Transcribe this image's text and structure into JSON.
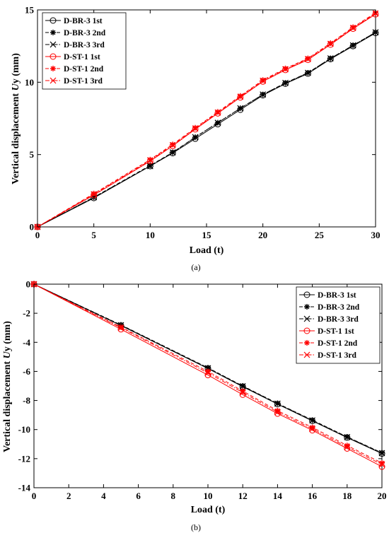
{
  "chart_data": [
    {
      "type": "line",
      "caption": "(a)",
      "xlabel": "Load  (t)",
      "ylabel_prefix": "Vertical displacement ",
      "ylabel_symbol": "U",
      "ylabel_suffix": "y (mm)",
      "xlim": [
        0,
        30
      ],
      "ylim": [
        0,
        15
      ],
      "xticks": [
        "0",
        "5",
        "10",
        "15",
        "20",
        "25",
        "30"
      ],
      "yticks": [
        "0",
        "5",
        "10",
        "15"
      ],
      "grid": false,
      "legend_position": "top-left",
      "series": [
        {
          "name": "D-BR-3 1st",
          "color": "#000000",
          "marker": "circle",
          "dash": "solid",
          "x": [
            0,
            5,
            10,
            12,
            14,
            16,
            18,
            20,
            22,
            24,
            26,
            28,
            30
          ],
          "y": [
            0,
            2.0,
            4.2,
            5.1,
            6.1,
            7.1,
            8.1,
            9.1,
            9.9,
            10.6,
            11.6,
            12.5,
            13.4
          ]
        },
        {
          "name": "D-BR-3 2nd",
          "color": "#000000",
          "marker": "star",
          "dash": "dash",
          "x": [
            0,
            5,
            10,
            12,
            14,
            16,
            18,
            20,
            22,
            24,
            26,
            28,
            30
          ],
          "y": [
            0,
            2.05,
            4.25,
            5.15,
            6.2,
            7.2,
            8.2,
            9.15,
            9.95,
            10.65,
            11.65,
            12.55,
            13.45
          ]
        },
        {
          "name": "D-BR-3 3rd",
          "color": "#000000",
          "marker": "x",
          "dash": "dashdot",
          "x": [
            0,
            5,
            10,
            12,
            14,
            16,
            18,
            20,
            22,
            24,
            26,
            28,
            30
          ],
          "y": [
            0,
            2.05,
            4.2,
            5.15,
            6.2,
            7.2,
            8.2,
            9.15,
            9.95,
            10.65,
            11.65,
            12.55,
            13.45
          ]
        },
        {
          "name": "D-ST-1 1st",
          "color": "#ff0000",
          "marker": "circle",
          "dash": "solid",
          "x": [
            0,
            5,
            10,
            12,
            14,
            16,
            18,
            20,
            22,
            24,
            26,
            28,
            30
          ],
          "y": [
            0,
            2.2,
            4.55,
            5.6,
            6.75,
            7.85,
            8.95,
            10.05,
            10.85,
            11.55,
            12.6,
            13.7,
            14.7
          ]
        },
        {
          "name": "D-ST-1 2nd",
          "color": "#ff0000",
          "marker": "star",
          "dash": "dash",
          "x": [
            0,
            5,
            10,
            12,
            14,
            16,
            18,
            20,
            22,
            24,
            26,
            28,
            30
          ],
          "y": [
            0,
            2.3,
            4.65,
            5.7,
            6.85,
            7.95,
            9.05,
            10.15,
            10.95,
            11.65,
            12.7,
            13.8,
            14.8
          ]
        },
        {
          "name": "D-ST-1 3rd",
          "color": "#ff0000",
          "marker": "x",
          "dash": "dashdot",
          "x": [
            0,
            5,
            10,
            12,
            14,
            16,
            18,
            20,
            22,
            24,
            26,
            28,
            30
          ],
          "y": [
            0,
            2.25,
            4.6,
            5.65,
            6.8,
            7.9,
            9.0,
            10.1,
            10.9,
            11.6,
            12.65,
            13.75,
            14.75
          ]
        }
      ]
    },
    {
      "type": "line",
      "caption": "(b)",
      "xlabel": "Load  (t)",
      "ylabel_prefix": "Vertical displacement ",
      "ylabel_symbol": "U",
      "ylabel_suffix": "y (mm)",
      "xlim": [
        0,
        20
      ],
      "ylim": [
        -14,
        0
      ],
      "xticks": [
        "0",
        "2",
        "4",
        "6",
        "8",
        "10",
        "12",
        "14",
        "16",
        "18",
        "20"
      ],
      "yticks": [
        "-14",
        "-12",
        "-10",
        "-8",
        "-6",
        "-4",
        "-2",
        "0"
      ],
      "grid": false,
      "legend_position": "top-right",
      "series": [
        {
          "name": "D-BR-3 1st",
          "color": "#000000",
          "marker": "circle",
          "dash": "solid",
          "x": [
            0,
            5,
            10,
            12,
            14,
            16,
            18,
            20
          ],
          "y": [
            0,
            -2.85,
            -5.8,
            -7.05,
            -8.25,
            -9.4,
            -10.55,
            -11.65
          ]
        },
        {
          "name": "D-BR-3 2nd",
          "color": "#000000",
          "marker": "star",
          "dash": "dash",
          "x": [
            0,
            5,
            10,
            12,
            14,
            16,
            18,
            20
          ],
          "y": [
            0,
            -2.8,
            -5.75,
            -7.0,
            -8.2,
            -9.35,
            -10.5,
            -11.6
          ]
        },
        {
          "name": "D-BR-3 3rd",
          "color": "#000000",
          "marker": "x",
          "dash": "dashdot",
          "x": [
            0,
            5,
            10,
            12,
            14,
            16,
            18,
            20
          ],
          "y": [
            0,
            -2.82,
            -5.78,
            -7.02,
            -8.22,
            -9.37,
            -10.52,
            -11.62
          ]
        },
        {
          "name": "D-ST-1 1st",
          "color": "#ff0000",
          "marker": "circle",
          "dash": "solid",
          "x": [
            0,
            5,
            10,
            12,
            14,
            16,
            18,
            20
          ],
          "y": [
            0,
            -3.1,
            -6.25,
            -7.6,
            -8.9,
            -10.05,
            -11.3,
            -12.55
          ]
        },
        {
          "name": "D-ST-1 2nd",
          "color": "#ff0000",
          "marker": "star",
          "dash": "dash",
          "x": [
            0,
            5,
            10,
            12,
            14,
            16,
            18,
            20
          ],
          "y": [
            0,
            -2.95,
            -6.0,
            -7.35,
            -8.7,
            -9.85,
            -11.1,
            -12.3
          ]
        },
        {
          "name": "D-ST-1 3rd",
          "color": "#ff0000",
          "marker": "x",
          "dash": "dashdot",
          "x": [
            0,
            5,
            10,
            12,
            14,
            16,
            18,
            20
          ],
          "y": [
            0,
            -3.0,
            -6.1,
            -7.45,
            -8.8,
            -9.95,
            -11.2,
            -12.4
          ]
        }
      ]
    }
  ]
}
